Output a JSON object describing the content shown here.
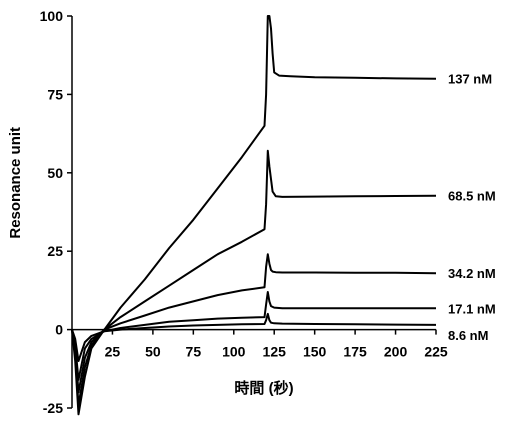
{
  "chart_data": {
    "type": "line",
    "title": "",
    "xlabel": "時間 (秒)",
    "ylabel": "Resonance unit",
    "xlim": [
      0,
      225
    ],
    "ylim": [
      -25,
      100
    ],
    "xticks": [
      "25",
      "50",
      "75",
      "100",
      "125",
      "150",
      "175",
      "200",
      "225"
    ],
    "yticks": [
      "-25",
      "0",
      "25",
      "50",
      "75",
      "100"
    ],
    "grid": false,
    "legend": "none",
    "line_color": "#000000",
    "series": [
      {
        "name": "137 nM",
        "x": [
          0,
          2,
          4,
          8,
          12,
          20,
          30,
          45,
          60,
          75,
          90,
          105,
          119,
          120,
          121,
          122,
          123,
          124,
          125,
          128,
          135,
          150,
          175,
          200,
          225
        ],
        "y": [
          0,
          -10,
          -27,
          -15,
          -6,
          0,
          7,
          16,
          26,
          35,
          45,
          55,
          65,
          75,
          100,
          100,
          96,
          88,
          82,
          81,
          80.8,
          80.5,
          80.3,
          80.1,
          80
        ]
      },
      {
        "name": "68.5 nM",
        "x": [
          0,
          2,
          4,
          8,
          12,
          20,
          30,
          45,
          60,
          75,
          90,
          105,
          119,
          120,
          121,
          122,
          123,
          124,
          126,
          130,
          150,
          175,
          200,
          225
        ],
        "y": [
          0,
          -8,
          -24,
          -12,
          -5,
          0,
          4,
          9,
          14,
          19,
          24,
          28,
          32,
          40,
          57,
          52,
          48,
          44,
          42.5,
          42.3,
          42.4,
          42.5,
          42.6,
          42.7
        ]
      },
      {
        "name": "34.2 nM",
        "x": [
          0,
          2,
          4,
          8,
          12,
          20,
          30,
          45,
          60,
          75,
          90,
          105,
          119,
          120,
          121,
          122,
          123,
          124,
          126,
          130,
          150,
          175,
          200,
          225
        ],
        "y": [
          0,
          -6,
          -20,
          -9,
          -4,
          0,
          2,
          4.5,
          7,
          9,
          11,
          12.5,
          13.5,
          20,
          24,
          21,
          19,
          18.5,
          18.3,
          18.2,
          18.2,
          18.1,
          18.1,
          18
        ]
      },
      {
        "name": "17.1 nM",
        "x": [
          0,
          2,
          4,
          8,
          12,
          20,
          30,
          45,
          60,
          75,
          90,
          105,
          119,
          120,
          121,
          122,
          123,
          125,
          130,
          150,
          175,
          200,
          225
        ],
        "y": [
          0,
          -5,
          -16,
          -6,
          -3,
          -0.5,
          0.5,
          1.5,
          2.5,
          3,
          3.5,
          3.8,
          4,
          8,
          12,
          9,
          7.5,
          7,
          6.8,
          6.8,
          6.8,
          6.8,
          6.8
        ]
      },
      {
        "name": "8.6 nM",
        "x": [
          0,
          2,
          4,
          8,
          12,
          20,
          30,
          45,
          60,
          75,
          90,
          105,
          119,
          120,
          121,
          122,
          123,
          125,
          130,
          150,
          175,
          200,
          225
        ],
        "y": [
          0,
          -3,
          -10,
          -4,
          -2,
          -0.5,
          0,
          0.5,
          1,
          1.3,
          1.5,
          1.7,
          1.8,
          3,
          5,
          3,
          2.2,
          2,
          1.9,
          1.8,
          1.7,
          1.6,
          1.5
        ]
      }
    ]
  }
}
